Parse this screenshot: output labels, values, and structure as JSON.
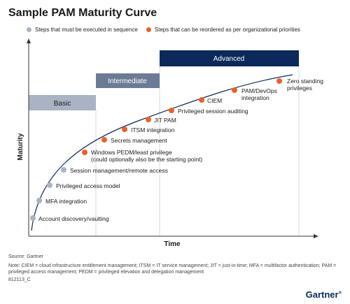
{
  "title": "Sample PAM Maturity Curve",
  "legend": [
    {
      "label": "Steps that must be executed in sequence",
      "color": "#a9b3c4"
    },
    {
      "label": "Steps that can be reordered as per organizational priorities",
      "color": "#e8622a"
    }
  ],
  "colors": {
    "basic": "#a9b3c4",
    "intermediate": "#6b7b93",
    "advanced": "#0b2a5b",
    "curve": "#0b2a5b",
    "sequence_dot": "#a9b3c4",
    "reorder_dot": "#e8622a"
  },
  "diagram": {
    "y_axis_label": "Maturity",
    "x_axis_label": "Time",
    "stages": [
      {
        "label": "Basic",
        "level": 1
      },
      {
        "label": "Intermediate",
        "level": 2
      },
      {
        "label": "Advanced",
        "level": 3
      }
    ],
    "steps": [
      {
        "label": "Account discovery/vaulting",
        "kind": "sequence"
      },
      {
        "label": "MFA integration",
        "kind": "sequence"
      },
      {
        "label": "Privileged access model",
        "kind": "sequence"
      },
      {
        "label": "Session management/remote access",
        "kind": "sequence"
      },
      {
        "label": "Windows PEDM/least privilege",
        "label2": "(could optionally also be the starting point)",
        "kind": "reorder"
      },
      {
        "label": "Secrets management",
        "kind": "reorder"
      },
      {
        "label": "ITSM integration",
        "kind": "reorder"
      },
      {
        "label": "JIT PAM",
        "kind": "reorder"
      },
      {
        "label": "Privileged session auditing",
        "kind": "reorder"
      },
      {
        "label": "CIEM",
        "kind": "reorder"
      },
      {
        "label": "PAM/DevOps",
        "label2": "integration",
        "kind": "reorder"
      },
      {
        "label": "Zero standing",
        "label2": "privileges",
        "kind": "reorder"
      }
    ]
  },
  "footer": {
    "source": "Source: Gartner",
    "note": "Note: CIEM = cloud infrastructure entitlement management; ITSM = IT service management; JIT = just-in-time; MFA = multifactor authentication; PAM = privileged access management; PEDM = privileged elevation and delegation management",
    "code": "812113_C",
    "logo": "Gartner",
    "logo_mark": "®"
  }
}
